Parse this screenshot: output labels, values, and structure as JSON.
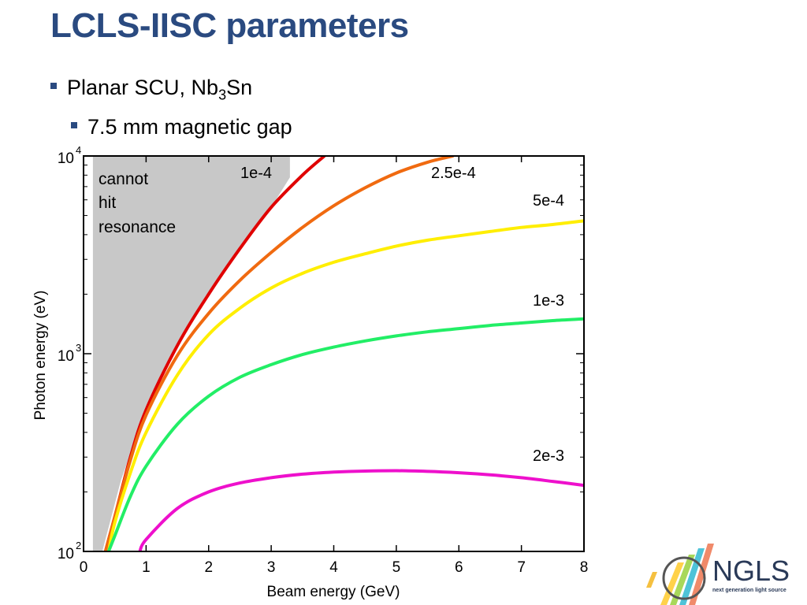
{
  "slide": {
    "title": "LCLS-IISC parameters",
    "bullet1": {
      "text": "Planar SCU, Nb",
      "sub": "3",
      "tail": "Sn"
    },
    "bullet2": "7.5 mm magnetic gap"
  },
  "chart_data": {
    "type": "line",
    "xlabel": "Beam energy (GeV)",
    "ylabel": "Photon energy (eV)",
    "xlim": [
      0,
      8
    ],
    "ylim": [
      100,
      10000
    ],
    "yscale": "log",
    "xticks": [
      "0",
      "1",
      "2",
      "3",
      "4",
      "5",
      "6",
      "7",
      "8"
    ],
    "yticks": [
      {
        "base": "10",
        "exp": "2"
      },
      {
        "base": "10",
        "exp": "3"
      },
      {
        "base": "10",
        "exp": "4"
      }
    ],
    "annotation": [
      "cannot",
      "hit",
      "resonance"
    ],
    "shaded_region": {
      "label": "cannot hit resonance",
      "color": "#c8c8c8",
      "boundary": [
        [
          0.15,
          100
        ],
        [
          0.3,
          100
        ],
        [
          0.6,
          230
        ],
        [
          1.0,
          520
        ],
        [
          1.5,
          1100
        ],
        [
          2.0,
          2000
        ],
        [
          2.5,
          3400
        ],
        [
          3.0,
          5500
        ],
        [
          3.3,
          7800
        ],
        [
          3.3,
          10000
        ],
        [
          0.15,
          10000
        ]
      ]
    },
    "series": [
      {
        "name": "1e-4",
        "color": "#e00000",
        "x": [
          0.35,
          0.5,
          0.75,
          1.0,
          1.5,
          2.0,
          2.5,
          3.0,
          3.5,
          3.85
        ],
        "y": [
          100,
          150,
          300,
          520,
          1100,
          2000,
          3400,
          5500,
          8000,
          10000
        ]
      },
      {
        "name": "2.5e-4",
        "color": "#f06a10",
        "x": [
          0.35,
          0.5,
          0.75,
          1.0,
          1.5,
          2.0,
          2.5,
          3.0,
          3.5,
          4.0,
          4.5,
          5.0,
          5.5,
          5.9
        ],
        "y": [
          100,
          150,
          290,
          490,
          980,
          1600,
          2350,
          3250,
          4350,
          5600,
          6900,
          8200,
          9300,
          10000
        ]
      },
      {
        "name": "5e-4",
        "color": "#ffee00",
        "x": [
          0.4,
          0.5,
          0.75,
          1.0,
          1.5,
          2.0,
          2.5,
          3.0,
          3.5,
          4.0,
          4.5,
          5.0,
          5.5,
          6.0,
          6.5,
          7.0,
          7.5,
          8.0
        ],
        "y": [
          100,
          140,
          250,
          400,
          780,
          1250,
          1700,
          2150,
          2550,
          2900,
          3200,
          3500,
          3750,
          3950,
          4150,
          4350,
          4500,
          4700
        ]
      },
      {
        "name": "1e-3",
        "color": "#22ee66",
        "x": [
          0.4,
          0.5,
          0.75,
          1.0,
          1.5,
          2.0,
          2.5,
          3.0,
          3.5,
          4.0,
          4.5,
          5.0,
          5.5,
          6.0,
          6.5,
          7.0,
          7.5,
          8.0
        ],
        "y": [
          100,
          120,
          190,
          270,
          440,
          610,
          760,
          880,
          990,
          1080,
          1160,
          1230,
          1290,
          1340,
          1390,
          1430,
          1470,
          1500
        ]
      },
      {
        "name": "2e-3",
        "color": "#ee10cc",
        "x": [
          0.9,
          1.0,
          1.5,
          2.0,
          2.5,
          3.0,
          3.5,
          4.0,
          4.5,
          5.0,
          5.5,
          6.0,
          6.5,
          7.0,
          7.5,
          8.0
        ],
        "y": [
          100,
          115,
          165,
          200,
          222,
          236,
          246,
          252,
          255,
          256,
          254,
          250,
          244,
          236,
          226,
          216
        ]
      }
    ],
    "series_labels": [
      "1e-4",
      "2.5e-4",
      "5e-4",
      "1e-3",
      "2e-3"
    ]
  },
  "logo": {
    "text": "NGLS",
    "subtitle": "next generation light source"
  }
}
